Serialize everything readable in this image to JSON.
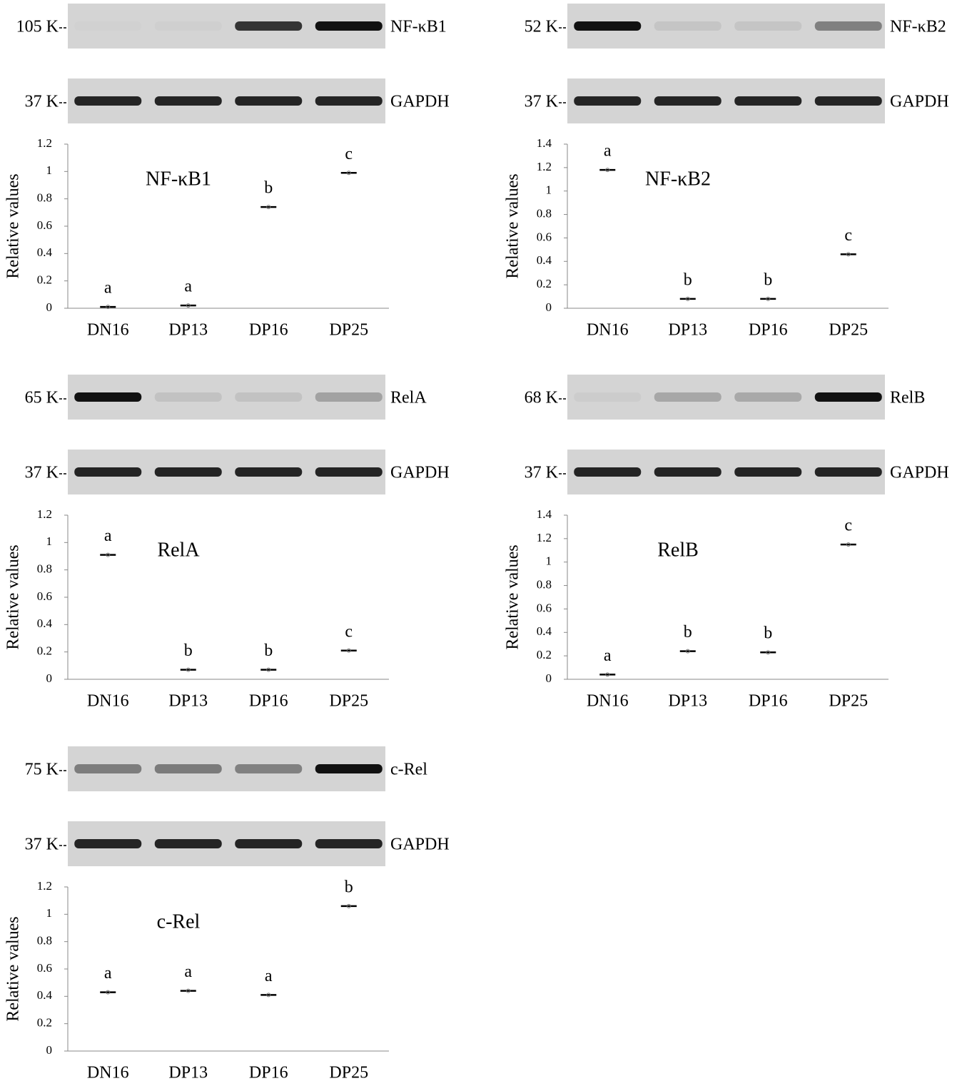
{
  "chart_data": [
    {
      "type": "dot",
      "title": "NF-κB1",
      "marker": "105 K",
      "protein": "NF-κB1",
      "loading_marker": "37 K",
      "loading_protein": "GAPDH",
      "ylabel": "Relative values",
      "categories": [
        "DN16",
        "DP13",
        "DP16",
        "DP25"
      ],
      "values": [
        0.01,
        0.02,
        0.74,
        0.99
      ],
      "annotations": [
        "a",
        "a",
        "b",
        "c"
      ],
      "ylim": [
        0,
        1.2
      ],
      "yticks": [
        0,
        0.2,
        0.4,
        0.6,
        0.8,
        1,
        1.2
      ],
      "color": "#000000"
    },
    {
      "type": "dot",
      "title": "NF-κB2",
      "marker": "52 K",
      "protein": "NF-κB2",
      "loading_marker": "37 K",
      "loading_protein": "GAPDH",
      "ylabel": "Relative values",
      "categories": [
        "DN16",
        "DP13",
        "DP16",
        "DP25"
      ],
      "values": [
        1.18,
        0.08,
        0.08,
        0.46
      ],
      "annotations": [
        "a",
        "b",
        "b",
        "c"
      ],
      "ylim": [
        0,
        1.4
      ],
      "yticks": [
        0,
        0.2,
        0.4,
        0.6,
        0.8,
        1,
        1.2,
        1.4
      ],
      "color": "#000000"
    },
    {
      "type": "dot",
      "title": "RelA",
      "marker": "65 K",
      "protein": "RelA",
      "loading_marker": "37 K",
      "loading_protein": "GAPDH",
      "ylabel": "Relative values",
      "categories": [
        "DN16",
        "DP13",
        "DP16",
        "DP25"
      ],
      "values": [
        0.91,
        0.07,
        0.07,
        0.21
      ],
      "annotations": [
        "a",
        "b",
        "b",
        "c"
      ],
      "ylim": [
        0,
        1.2
      ],
      "yticks": [
        0,
        0.2,
        0.4,
        0.6,
        0.8,
        1,
        1.2
      ],
      "color": "#000000"
    },
    {
      "type": "dot",
      "title": "RelB",
      "marker": "68 K",
      "protein": "RelB",
      "loading_marker": "37 K",
      "loading_protein": "GAPDH",
      "ylabel": "Relative values",
      "categories": [
        "DN16",
        "DP13",
        "DP16",
        "DP25"
      ],
      "values": [
        0.04,
        0.24,
        0.23,
        1.15
      ],
      "annotations": [
        "a",
        "b",
        "b",
        "c"
      ],
      "ylim": [
        0,
        1.4
      ],
      "yticks": [
        0,
        0.2,
        0.4,
        0.6,
        0.8,
        1,
        1.2,
        1.4
      ],
      "color": "#000000"
    },
    {
      "type": "dot",
      "title": "c-Rel",
      "marker": "75 K",
      "protein": "c-Rel",
      "loading_marker": "37 K",
      "loading_protein": "GAPDH",
      "ylabel": "Relative values",
      "categories": [
        "DN16",
        "DP13",
        "DP16",
        "DP25"
      ],
      "values": [
        0.43,
        0.44,
        0.41,
        1.06
      ],
      "annotations": [
        "a",
        "a",
        "a",
        "b"
      ],
      "ylim": [
        0,
        1.2
      ],
      "yticks": [
        0,
        0.2,
        0.4,
        0.6,
        0.8,
        1,
        1.2
      ],
      "color": "#000000"
    }
  ]
}
